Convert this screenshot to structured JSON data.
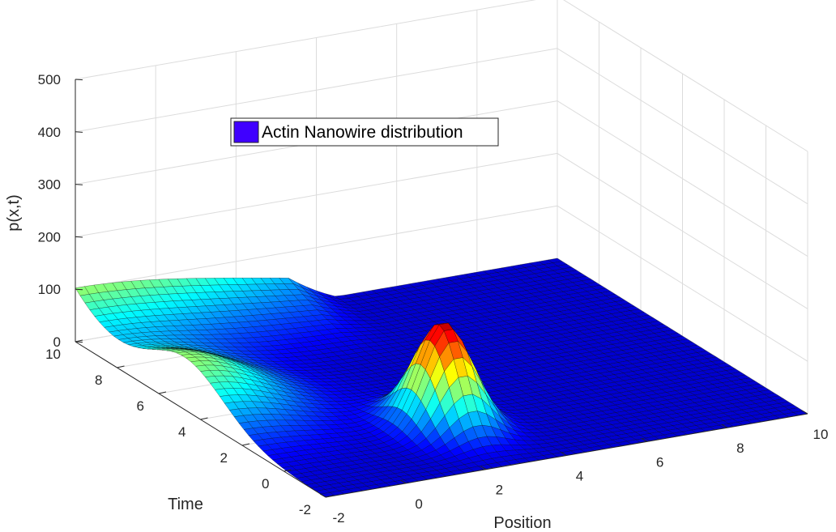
{
  "chart_data": {
    "type": "surface",
    "title": "",
    "xlabel": "Position",
    "ylabel": "Time",
    "zlabel": "p(x,t)",
    "xlim": [
      -2,
      10
    ],
    "ylim": [
      -2,
      10
    ],
    "zlim": [
      0,
      500
    ],
    "x_ticks": [
      "-2",
      "0",
      "2",
      "4",
      "6",
      "8",
      "10"
    ],
    "y_ticks": [
      "-2",
      "0",
      "2",
      "4",
      "6",
      "8",
      "10"
    ],
    "z_ticks": [
      "0",
      "100",
      "200",
      "300",
      "400",
      "500"
    ],
    "grid": true,
    "colormap": "jet",
    "legend": {
      "entries": [
        "Actin Nanowire distribution"
      ],
      "placement": "top-center",
      "swatch_color": "#3f00ff"
    },
    "surface_features": {
      "peak": {
        "x": 2.5,
        "t": 1.0,
        "p": 200
      },
      "ridge_along_time": {
        "x": -2.0,
        "t_center": 4.8,
        "p": 100
      },
      "plateau_at_t_max": {
        "t": 10,
        "p": 100
      },
      "background_level": 0
    }
  }
}
